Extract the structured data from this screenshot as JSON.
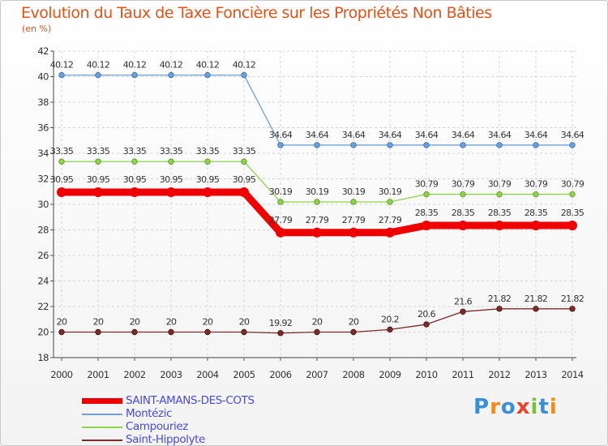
{
  "title": "Evolution du Taux de Taxe Foncière sur les Propriétés Non Bâties",
  "subtitle": "(en %)",
  "brand": {
    "letters": [
      "P",
      "r",
      "o",
      "x",
      "i",
      "t",
      "i"
    ],
    "colors": [
      "#3a8fd6",
      "#f08c1e",
      "#3a8fd6",
      "#e8432d",
      "#7bbf3a",
      "#3a8fd6",
      "#f08c1e"
    ]
  },
  "chart_data": {
    "type": "line",
    "title": "Evolution du Taux de Taxe Foncière sur les Propriétés Non Bâties",
    "ylabel": "(en %)",
    "xlabel": "",
    "ylim": [
      18,
      42
    ],
    "yticks": [
      "18",
      "20",
      "22",
      "24",
      "26",
      "28",
      "30",
      "32",
      "34",
      "36",
      "38",
      "40",
      "42"
    ],
    "categories": [
      "2000",
      "2001",
      "2002",
      "2003",
      "2004",
      "2005",
      "2006",
      "2007",
      "2008",
      "2009",
      "2010",
      "2011",
      "2012",
      "2013",
      "2014"
    ],
    "series": [
      {
        "name": "SAINT-AMANS-DES-COTS",
        "color": "#ee0000",
        "values": [
          30.95,
          30.95,
          30.95,
          30.95,
          30.95,
          30.95,
          27.79,
          27.79,
          27.79,
          27.79,
          28.35,
          28.35,
          28.35,
          28.35,
          28.35
        ],
        "labels": [
          "30.95",
          "30.95",
          "30.95",
          "30.95",
          "30.95",
          "30.95",
          "27.79",
          "27.79",
          "27.79",
          "27.79",
          "28.35",
          "28.35",
          "28.35",
          "28.35",
          "28.35"
        ]
      },
      {
        "name": "Montézic",
        "color": "#6f9fd4",
        "values": [
          40.12,
          40.12,
          40.12,
          40.12,
          40.12,
          40.12,
          34.64,
          34.64,
          34.64,
          34.64,
          34.64,
          34.64,
          34.64,
          34.64,
          34.64
        ],
        "labels": [
          "40.12",
          "40.12",
          "40.12",
          "40.12",
          "40.12",
          "40.12",
          "34.64",
          "34.64",
          "34.64",
          "34.64",
          "34.64",
          "34.64",
          "34.64",
          "34.64",
          "34.64"
        ]
      },
      {
        "name": "Campouriez",
        "color": "#8fd14f",
        "values": [
          33.35,
          33.35,
          33.35,
          33.35,
          33.35,
          33.35,
          30.19,
          30.19,
          30.19,
          30.19,
          30.79,
          30.79,
          30.79,
          30.79,
          30.79
        ],
        "labels": [
          "33.35",
          "33.35",
          "33.35",
          "33.35",
          "33.35",
          "33.35",
          "30.19",
          "30.19",
          "30.19",
          "30.19",
          "30.79",
          "30.79",
          "30.79",
          "30.79",
          "30.79"
        ]
      },
      {
        "name": "Saint-Hippolyte",
        "color": "#7a2b2b",
        "values": [
          20,
          20,
          20,
          20,
          20,
          20,
          19.92,
          20,
          20,
          20.2,
          20.6,
          21.6,
          21.82,
          21.82,
          21.82
        ],
        "labels": [
          "20",
          "20",
          "20",
          "20",
          "20",
          "20",
          "19.92",
          "20",
          "20",
          "20.2",
          "20.6",
          "21.6",
          "21.82",
          "21.82",
          "21.82"
        ]
      }
    ]
  }
}
